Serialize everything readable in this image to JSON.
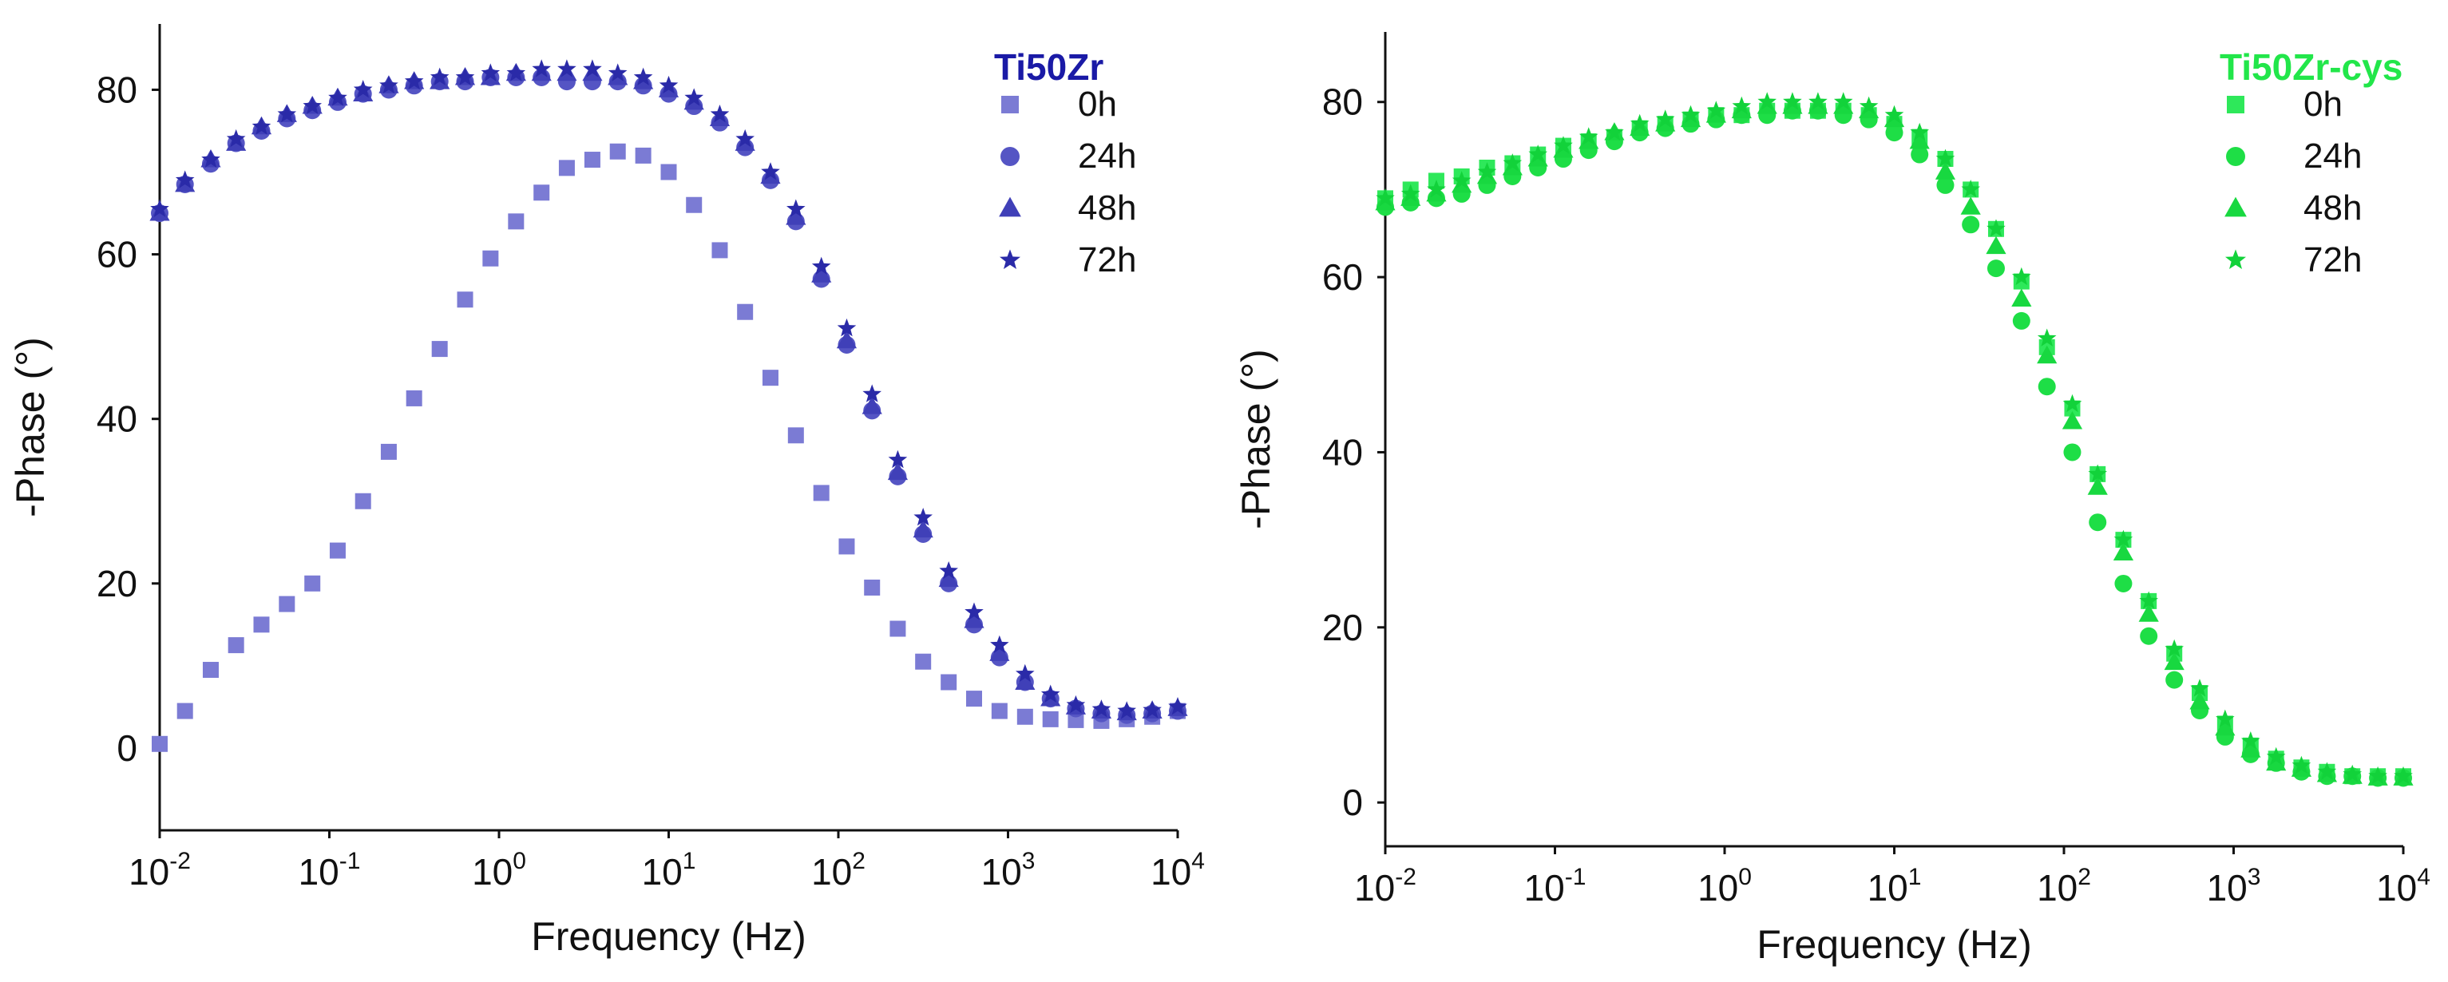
{
  "chart_data": [
    {
      "type": "scatter",
      "title": "",
      "xlabel": "Frequency (Hz)",
      "ylabel": "-Phase (°)",
      "xscale": "log",
      "xlim": [
        0.01,
        10000
      ],
      "ylim": [
        -10,
        88
      ],
      "yticks": [
        0,
        20,
        40,
        60,
        80
      ],
      "xtick_labels": [
        {
          "base": "10",
          "exp": "-2"
        },
        {
          "base": "10",
          "exp": "-1"
        },
        {
          "base": "10",
          "exp": "0"
        },
        {
          "base": "10",
          "exp": "1"
        },
        {
          "base": "10",
          "exp": "2"
        },
        {
          "base": "10",
          "exp": "3"
        },
        {
          "base": "10",
          "exp": "4"
        }
      ],
      "legend_title": "Ti50Zr",
      "legend_title_color": "#1a1aa6",
      "legend_position": "top-right",
      "series": [
        {
          "name": "0h",
          "marker": "square",
          "color": "#7b7bd4",
          "x": [
            0.01,
            0.0141,
            0.02,
            0.0282,
            0.0398,
            0.0562,
            0.0794,
            0.112,
            0.158,
            0.224,
            0.316,
            0.447,
            0.631,
            0.891,
            1.26,
            1.78,
            2.51,
            3.55,
            5.01,
            7.08,
            10,
            14.1,
            20,
            28.2,
            39.8,
            56.2,
            79.4,
            112,
            158,
            224,
            316,
            447,
            631,
            891,
            1260,
            1780,
            2510,
            3550,
            5010,
            7080,
            10000
          ],
          "y": [
            0.5,
            4.5,
            9.5,
            12.5,
            15,
            17.5,
            20,
            24,
            30,
            36,
            42.5,
            48.5,
            54.5,
            59.5,
            64,
            67.5,
            70.5,
            71.5,
            72.5,
            72,
            70,
            66,
            60.5,
            53,
            45,
            38,
            31,
            24.5,
            19.5,
            14.5,
            10.5,
            8,
            6,
            4.5,
            3.8,
            3.5,
            3.4,
            3.3,
            3.5,
            3.8,
            4.5
          ]
        },
        {
          "name": "24h",
          "marker": "circle",
          "color": "#5555c4",
          "x": [
            0.01,
            0.0141,
            0.02,
            0.0282,
            0.0398,
            0.0562,
            0.0794,
            0.112,
            0.158,
            0.224,
            0.316,
            0.447,
            0.631,
            0.891,
            1.26,
            1.78,
            2.51,
            3.55,
            5.01,
            7.08,
            10,
            14.1,
            20,
            28.2,
            39.8,
            56.2,
            79.4,
            112,
            158,
            224,
            316,
            447,
            631,
            891,
            1260,
            1780,
            2510,
            3550,
            5010,
            7080,
            10000
          ],
          "y": [
            65,
            68.5,
            71,
            73.5,
            75,
            76.5,
            77.5,
            78.5,
            79.5,
            80,
            80.5,
            81,
            81,
            81.5,
            81.5,
            81.5,
            81,
            81,
            81,
            80.5,
            79.5,
            78,
            76,
            73,
            69,
            64,
            57,
            49,
            41,
            33,
            26,
            20,
            15,
            11,
            8,
            6,
            4.8,
            4.2,
            4,
            4.2,
            4.5
          ]
        },
        {
          "name": "48h",
          "marker": "triangle",
          "color": "#4040b8",
          "x": [
            0.01,
            0.0141,
            0.02,
            0.0282,
            0.0398,
            0.0562,
            0.0794,
            0.112,
            0.158,
            0.224,
            0.316,
            0.447,
            0.631,
            0.891,
            1.26,
            1.78,
            2.51,
            3.55,
            5.01,
            7.08,
            10,
            14.1,
            20,
            28.2,
            39.8,
            56.2,
            79.4,
            112,
            158,
            224,
            316,
            447,
            631,
            891,
            1260,
            1780,
            2510,
            3550,
            5010,
            7080,
            10000
          ],
          "y": [
            65,
            68.5,
            71.5,
            73.5,
            75.5,
            77,
            78,
            79,
            79.5,
            80.5,
            81,
            81,
            81.5,
            81.5,
            82,
            82,
            82,
            82,
            81.5,
            81,
            80,
            78.5,
            76.5,
            73.5,
            69.5,
            64.5,
            57.5,
            49.5,
            41.5,
            33.5,
            26.5,
            20.5,
            15.5,
            11.5,
            8,
            6,
            5,
            4.5,
            4.3,
            4.5,
            4.8
          ]
        },
        {
          "name": "72h",
          "marker": "star",
          "color": "#2a2aa8",
          "x": [
            0.01,
            0.0141,
            0.02,
            0.0282,
            0.0398,
            0.0562,
            0.0794,
            0.112,
            0.158,
            0.224,
            0.316,
            0.447,
            0.631,
            0.891,
            1.26,
            1.78,
            2.51,
            3.55,
            5.01,
            7.08,
            10,
            14.1,
            20,
            28.2,
            39.8,
            56.2,
            79.4,
            112,
            158,
            224,
            316,
            447,
            631,
            891,
            1260,
            1780,
            2510,
            3550,
            5010,
            7080,
            10000
          ],
          "y": [
            65.5,
            69,
            71.5,
            74,
            75.5,
            77,
            78,
            79,
            80,
            80.5,
            81,
            81.5,
            81.5,
            82,
            82,
            82.5,
            82.5,
            82.5,
            82,
            81.5,
            80.5,
            79,
            77,
            74,
            70,
            65.5,
            58.5,
            51,
            43,
            35,
            28,
            21.5,
            16.5,
            12.5,
            9,
            6.5,
            5.2,
            4.7,
            4.5,
            4.6,
            5
          ]
        }
      ]
    },
    {
      "type": "scatter",
      "title": "",
      "xlabel": "Frequency (Hz)",
      "ylabel": "-Phase (°)",
      "xscale": "log",
      "xlim": [
        0.01,
        10000
      ],
      "ylim": [
        -5,
        88
      ],
      "yticks": [
        0,
        20,
        40,
        60,
        80
      ],
      "xtick_labels": [
        {
          "base": "10",
          "exp": "-2"
        },
        {
          "base": "10",
          "exp": "-1"
        },
        {
          "base": "10",
          "exp": "0"
        },
        {
          "base": "10",
          "exp": "1"
        },
        {
          "base": "10",
          "exp": "2"
        },
        {
          "base": "10",
          "exp": "3"
        },
        {
          "base": "10",
          "exp": "4"
        }
      ],
      "legend_title": "Ti50Zr-cys",
      "legend_title_color": "#22e64a",
      "legend_position": "top-right",
      "series": [
        {
          "name": "0h",
          "marker": "square",
          "color": "#2ee85a",
          "x": [
            0.01,
            0.0141,
            0.02,
            0.0282,
            0.0398,
            0.0562,
            0.0794,
            0.112,
            0.158,
            0.224,
            0.316,
            0.447,
            0.631,
            0.891,
            1.26,
            1.78,
            2.51,
            3.55,
            5.01,
            7.08,
            10,
            14.1,
            20,
            28.2,
            39.8,
            56.2,
            79.4,
            112,
            158,
            224,
            316,
            447,
            631,
            891,
            1260,
            1780,
            2510,
            3550,
            5010,
            7080,
            10000
          ],
          "y": [
            69,
            70,
            71,
            71.5,
            72.5,
            73,
            74,
            75,
            75.5,
            76,
            77,
            77.5,
            78,
            78.5,
            78.5,
            79,
            79,
            79,
            79,
            78.5,
            77.5,
            76,
            73.5,
            70,
            65.5,
            59.5,
            52,
            45,
            37.5,
            30,
            23,
            17,
            12.5,
            9,
            6.5,
            5,
            4,
            3.5,
            3,
            3,
            3
          ]
        },
        {
          "name": "24h",
          "marker": "circle",
          "color": "#1ede46",
          "x": [
            0.01,
            0.0141,
            0.02,
            0.0282,
            0.0398,
            0.0562,
            0.0794,
            0.112,
            0.158,
            0.224,
            0.316,
            0.447,
            0.631,
            0.891,
            1.26,
            1.78,
            2.51,
            3.55,
            5.01,
            7.08,
            10,
            14.1,
            20,
            28.2,
            39.8,
            56.2,
            79.4,
            112,
            158,
            224,
            316,
            447,
            631,
            891,
            1260,
            1780,
            2510,
            3550,
            5010,
            7080,
            10000
          ],
          "y": [
            68,
            68.5,
            69,
            69.5,
            70.5,
            71.5,
            72.5,
            73.5,
            74.5,
            75.5,
            76.5,
            77,
            77.5,
            78,
            78.5,
            78.5,
            79,
            79,
            78.5,
            78,
            76.5,
            74,
            70.5,
            66,
            61,
            55,
            47.5,
            40,
            32,
            25,
            19,
            14,
            10.5,
            7.5,
            5.5,
            4.5,
            3.5,
            3,
            3,
            2.8,
            2.8
          ]
        },
        {
          "name": "48h",
          "marker": "triangle",
          "color": "#18d840",
          "x": [
            0.01,
            0.0141,
            0.02,
            0.0282,
            0.0398,
            0.0562,
            0.0794,
            0.112,
            0.158,
            0.224,
            0.316,
            0.447,
            0.631,
            0.891,
            1.26,
            1.78,
            2.51,
            3.55,
            5.01,
            7.08,
            10,
            14.1,
            20,
            28.2,
            39.8,
            56.2,
            79.4,
            112,
            158,
            224,
            316,
            447,
            631,
            891,
            1260,
            1780,
            2510,
            3550,
            5010,
            7080,
            10000
          ],
          "y": [
            68.5,
            69,
            69.5,
            70.5,
            71.5,
            72.5,
            73.5,
            74.5,
            75.5,
            76.5,
            77,
            77.5,
            78,
            78.5,
            79,
            79.5,
            79.5,
            79.5,
            79.5,
            79,
            78,
            75.5,
            72,
            68,
            63.5,
            57.5,
            51,
            43.5,
            36,
            28.5,
            21.5,
            16,
            11.5,
            8.5,
            6,
            4.5,
            3.8,
            3.2,
            3,
            2.8,
            2.8
          ]
        },
        {
          "name": "72h",
          "marker": "star",
          "color": "#12d23a",
          "x": [
            0.01,
            0.0141,
            0.02,
            0.0282,
            0.0398,
            0.0562,
            0.0794,
            0.112,
            0.158,
            0.224,
            0.316,
            0.447,
            0.631,
            0.891,
            1.26,
            1.78,
            2.51,
            3.55,
            5.01,
            7.08,
            10,
            14.1,
            20,
            28.2,
            39.8,
            56.2,
            79.4,
            112,
            158,
            224,
            316,
            447,
            631,
            891,
            1260,
            1780,
            2510,
            3550,
            5010,
            7080,
            10000
          ],
          "y": [
            69,
            69.5,
            70,
            71,
            72,
            73,
            74,
            75,
            76,
            76.5,
            77.5,
            78,
            78.5,
            79,
            79.5,
            80,
            80,
            80,
            80,
            79.5,
            78.5,
            76.5,
            73.5,
            70,
            65.5,
            60,
            53,
            45.5,
            37.5,
            30,
            23,
            17.5,
            13,
            9.5,
            7,
            5.2,
            4.2,
            3.5,
            3.2,
            3,
            3
          ]
        }
      ]
    }
  ]
}
